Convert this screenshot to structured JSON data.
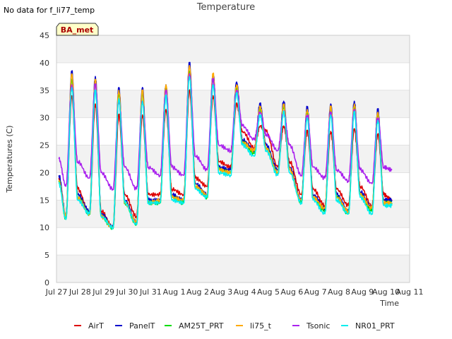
{
  "header": {
    "no_data_text": "No data for f_li77_temp",
    "badge": "BA_met"
  },
  "chart_data": {
    "type": "line",
    "title": "Temperature",
    "xlabel": "Time",
    "ylabel": "Temperatures (C)",
    "ylim": [
      0,
      45
    ],
    "yticks": [
      0,
      5,
      10,
      15,
      20,
      25,
      30,
      35,
      40,
      45
    ],
    "xlim": [
      0,
      15
    ],
    "xticks": [
      "Jul 27",
      "Jul 28",
      "Jul 29",
      "Jul 30",
      "Jul 31",
      "Aug 1",
      "Aug 2",
      "Aug 3",
      "Aug 4",
      "Aug 5",
      "Aug 6",
      "Aug 7",
      "Aug 8",
      "Aug 9",
      "Aug 10",
      "Aug 11"
    ],
    "x_unit": "days since Jul 27",
    "grid": "horizontal bands",
    "legend_position": "bottom",
    "daily_extremes": [
      {
        "day": "Jul 27",
        "min": 11.5,
        "max": 38
      },
      {
        "day": "Jul 28",
        "min": 12.5,
        "max": 37
      },
      {
        "day": "Jul 29",
        "min": 9.8,
        "max": 35
      },
      {
        "day": "Jul 30",
        "min": 10.5,
        "max": 35
      },
      {
        "day": "Jul 31",
        "min": 14.5,
        "max": 36
      },
      {
        "day": "Aug 1",
        "min": 14.5,
        "max": 39.5
      },
      {
        "day": "Aug 2",
        "min": 15.5,
        "max": 38
      },
      {
        "day": "Aug 3",
        "min": 19.5,
        "max": 36
      },
      {
        "day": "Aug 4",
        "min": 23.5,
        "max": 32
      },
      {
        "day": "Aug 5",
        "min": 19.5,
        "max": 32.5
      },
      {
        "day": "Aug 6",
        "min": 14.5,
        "max": 31.5
      },
      {
        "day": "Aug 7",
        "min": 12.5,
        "max": 31.5
      },
      {
        "day": "Aug 8",
        "min": 12.5,
        "max": 32.5
      },
      {
        "day": "Aug 9",
        "min": 12.5,
        "max": 31
      },
      {
        "day": "Aug 10",
        "min": 14.5,
        "max": 31
      }
    ],
    "series": [
      {
        "name": "AirT",
        "color": "#dd0000",
        "x": [
          0.1,
          0.4,
          0.65,
          0.9,
          1.4,
          1.65,
          1.9,
          2.4,
          2.65,
          2.9,
          3.4,
          3.65,
          3.9,
          4.4,
          4.65,
          4.9,
          5.4,
          5.65,
          5.9,
          6.4,
          6.65,
          6.9,
          7.4,
          7.65,
          7.9,
          8.4,
          8.65,
          8.9,
          9.4,
          9.65,
          9.9,
          10.4,
          10.65,
          10.9,
          11.4,
          11.65,
          11.9,
          12.4,
          12.65,
          12.9,
          13.4,
          13.65,
          13.9,
          14.25
        ],
        "y": [
          19,
          12,
          34,
          17,
          12.5,
          32.5,
          13,
          10,
          30.5,
          16,
          12,
          30.5,
          16,
          16,
          31.5,
          17,
          16,
          35,
          19,
          17.5,
          34,
          22,
          21,
          32.5,
          27.5,
          24.5,
          28.5,
          27.5,
          21,
          28.5,
          22,
          16,
          27.5,
          17,
          14,
          27.5,
          17,
          14,
          28,
          17.5,
          14,
          27,
          16,
          15
        ]
      },
      {
        "name": "PanelT",
        "color": "#0000cc",
        "x": [
          0.1,
          0.4,
          0.65,
          0.9,
          1.4,
          1.65,
          1.9,
          2.4,
          2.65,
          2.9,
          3.4,
          3.65,
          3.9,
          4.4,
          4.65,
          4.9,
          5.4,
          5.65,
          5.9,
          6.4,
          6.65,
          6.9,
          7.4,
          7.65,
          7.9,
          8.4,
          8.65,
          8.9,
          9.4,
          9.65,
          9.9,
          10.4,
          10.65,
          10.9,
          11.4,
          11.65,
          11.9,
          12.4,
          12.65,
          12.9,
          13.4,
          13.65,
          13.9,
          14.25
        ],
        "y": [
          19.5,
          12,
          38.5,
          16,
          13,
          37.5,
          12.5,
          10,
          35.5,
          15,
          11,
          35.5,
          15,
          15,
          36,
          16,
          15,
          40,
          18,
          16,
          38,
          21,
          20.5,
          36.5,
          26,
          24,
          32.5,
          25,
          20.5,
          33,
          21,
          15,
          32,
          16,
          13.5,
          32.5,
          16,
          13,
          33,
          16.5,
          13.5,
          31.5,
          15,
          15
        ]
      },
      {
        "name": "AM25T_PRT",
        "color": "#00dd00",
        "x": [
          0.1,
          0.4,
          0.65,
          0.9,
          1.4,
          1.65,
          1.9,
          2.4,
          2.65,
          2.9,
          3.4,
          3.65,
          3.9,
          4.4,
          4.65,
          4.9,
          5.4,
          5.65,
          5.9,
          6.4,
          6.65,
          6.9,
          7.4,
          7.65,
          7.9,
          8.4,
          8.65,
          8.9,
          9.4,
          9.65,
          9.9,
          10.4,
          10.65,
          10.9,
          11.4,
          11.65,
          11.9,
          12.4,
          12.65,
          12.9,
          13.4,
          13.65,
          13.9,
          14.25
        ],
        "y": [
          18.5,
          11.5,
          37,
          15.5,
          12.5,
          36.5,
          12,
          9.8,
          34.5,
          14.5,
          10.5,
          34.5,
          14.5,
          14.5,
          35.5,
          15.5,
          14.5,
          38.5,
          17.5,
          15.5,
          37,
          20.5,
          20,
          35.5,
          25.5,
          23.5,
          31.5,
          24.5,
          20,
          32,
          20.5,
          14.5,
          31,
          15.5,
          13,
          31.5,
          15.5,
          12.5,
          32,
          16,
          13,
          30.5,
          14.5,
          14.5
        ]
      },
      {
        "name": "li75_t",
        "color": "#ffaa00",
        "x": [
          0.1,
          0.4,
          0.65,
          0.9,
          1.4,
          1.65,
          1.9,
          2.4,
          2.65,
          2.9,
          3.4,
          3.65,
          3.9,
          4.4,
          4.65,
          4.9,
          5.4,
          5.65,
          5.9,
          6.4,
          6.65,
          6.9,
          7.4,
          7.65,
          7.9,
          8.4,
          8.65,
          8.9,
          9.4,
          9.65,
          9.9,
          10.4,
          10.65,
          10.9,
          11.4,
          11.65,
          11.9,
          12.4,
          12.65,
          12.9,
          13.4,
          13.65,
          13.9,
          14.25
        ],
        "y": [
          18.5,
          12,
          38,
          15.5,
          12.5,
          37,
          12,
          10,
          35,
          14.5,
          11,
          35,
          14.5,
          15,
          36,
          15.5,
          15,
          39.5,
          17.5,
          16,
          38,
          20.5,
          20,
          36,
          25.5,
          24,
          32,
          24.5,
          20,
          32.5,
          20.5,
          15,
          31.5,
          15.5,
          13.5,
          32,
          15.5,
          13,
          32.5,
          16,
          13.5,
          31,
          14.5,
          14.5
        ]
      },
      {
        "name": "Tsonic",
        "color": "#aa22ee",
        "x": [
          0.1,
          0.4,
          0.65,
          0.9,
          1.4,
          1.65,
          1.9,
          2.4,
          2.65,
          2.9,
          3.4,
          3.65,
          3.9,
          4.4,
          4.65,
          4.9,
          5.4,
          5.65,
          5.9,
          6.4,
          6.65,
          6.9,
          7.4,
          7.65,
          7.9,
          8.4,
          8.65,
          8.9,
          9.4,
          9.65,
          9.9,
          10.4,
          10.65,
          10.9,
          11.4,
          11.65,
          11.9,
          12.4,
          12.65,
          12.9,
          13.4,
          13.65,
          13.9,
          14.25
        ],
        "y": [
          22.5,
          17.5,
          36,
          22,
          19,
          36,
          20,
          17,
          33,
          21,
          17,
          33,
          21,
          19.5,
          35,
          21,
          19.5,
          38,
          23,
          20.5,
          37,
          25,
          24,
          35,
          28.5,
          26,
          31,
          27,
          24,
          31,
          25,
          19.5,
          30.5,
          21,
          19,
          31,
          20.5,
          18.5,
          31.5,
          20.5,
          18,
          30,
          21,
          20.5
        ]
      },
      {
        "name": "NR01_PRT",
        "color": "#00eeee",
        "x": [
          0.1,
          0.4,
          0.65,
          0.9,
          1.4,
          1.65,
          1.9,
          2.4,
          2.65,
          2.9,
          3.4,
          3.65,
          3.9,
          4.4,
          4.65,
          4.9,
          5.4,
          5.65,
          5.9,
          6.4,
          6.65,
          6.9,
          7.4,
          7.65,
          7.9,
          8.4,
          8.65,
          8.9,
          9.4,
          9.65,
          9.9,
          10.4,
          10.65,
          10.9,
          11.4,
          11.65,
          11.9,
          12.4,
          12.65,
          12.9,
          13.4,
          13.65,
          13.9,
          14.25
        ],
        "y": [
          18,
          11.5,
          35.5,
          15,
          12.5,
          35,
          12,
          10,
          33.5,
          14.5,
          10.5,
          33,
          14.5,
          14.5,
          34,
          15,
          14.5,
          37.5,
          17,
          15.5,
          36,
          20,
          19.5,
          34.5,
          25,
          23,
          30.5,
          24,
          19.5,
          31,
          20,
          14.5,
          30,
          15,
          12.5,
          30.5,
          15,
          12.5,
          31,
          15.5,
          12.5,
          29.5,
          14,
          14
        ]
      }
    ]
  }
}
